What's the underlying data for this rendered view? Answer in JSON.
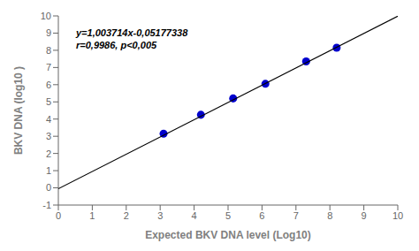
{
  "chart_data": {
    "type": "scatter",
    "xlabel": "Expected BKV DNA level (Log10)",
    "ylabel": "BKV DNA  (log10 )",
    "annotations": [
      "y=1,003714x-0,05177338",
      "r=0,9986, p<0,005"
    ],
    "series": [
      {
        "type": "scatter",
        "color": "#0000CD",
        "marker": "circle",
        "x": [
          3.1,
          4.2,
          5.15,
          6.1,
          7.3,
          8.2
        ],
        "values": [
          3.15,
          4.25,
          5.2,
          6.05,
          7.35,
          8.15
        ]
      },
      {
        "type": "line",
        "color": "#000000",
        "line_style": "solid",
        "x": [
          0,
          10
        ],
        "values": [
          -0.05177338,
          9.98536662
        ]
      }
    ],
    "xlim": [
      0,
      10
    ],
    "ylim": [
      -1,
      10
    ],
    "xticks": [
      0,
      1,
      2,
      3,
      4,
      5,
      6,
      7,
      8,
      9,
      10
    ],
    "yticks": [
      -1,
      0,
      1,
      2,
      3,
      4,
      5,
      6,
      7,
      8,
      9,
      10
    ],
    "grid": false
  }
}
